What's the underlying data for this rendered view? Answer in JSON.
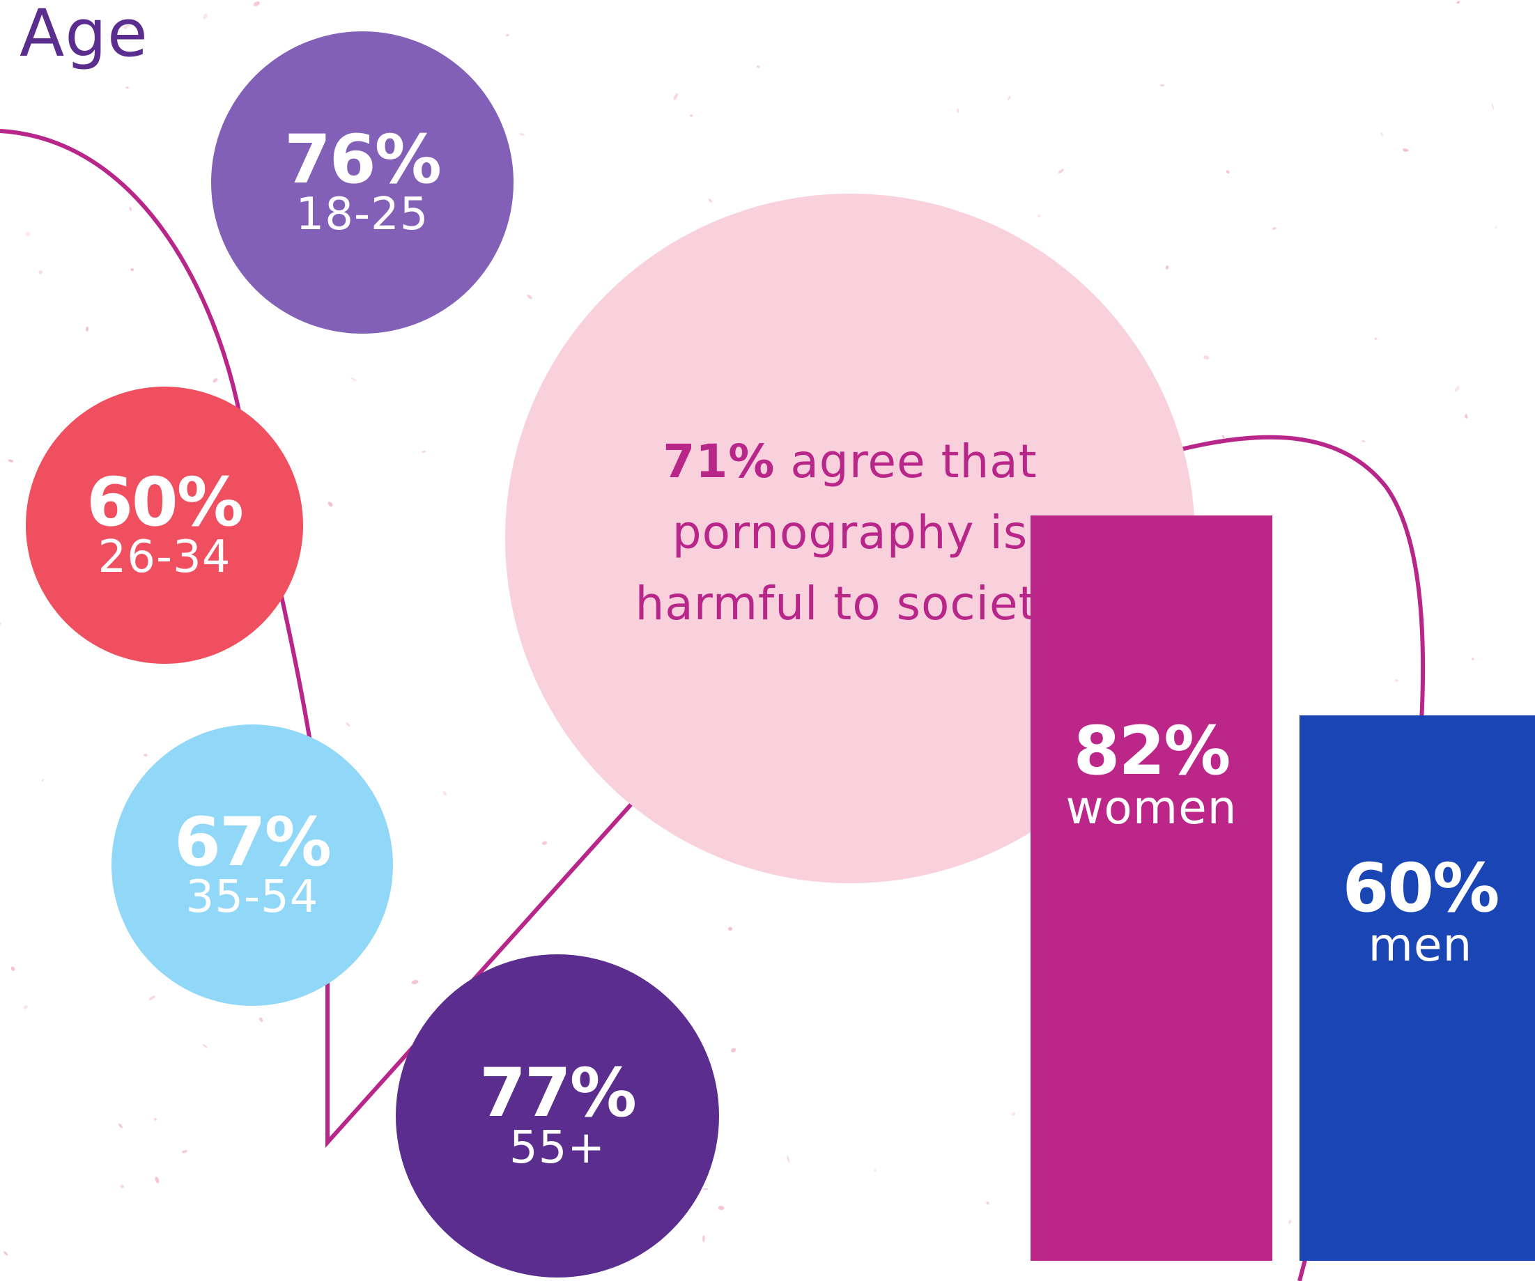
{
  "title": "Age",
  "headline": {
    "percent": "71%",
    "text": "agree that pornography is harmful to society"
  },
  "chart_data": [
    {
      "type": "bubble",
      "title": "Age",
      "categories": [
        "18-25",
        "26-34",
        "35-54",
        "55+"
      ],
      "values": [
        76,
        60,
        67,
        77
      ],
      "labels": [
        "76%",
        "60%",
        "67%",
        "77%"
      ],
      "colors": [
        "#8260b7",
        "#f04f5f",
        "#90d7f8",
        "#5b2d8e"
      ]
    },
    {
      "type": "bar",
      "categories": [
        "women",
        "men"
      ],
      "values": [
        82,
        60
      ],
      "labels": [
        "82%",
        "60%"
      ],
      "colors": [
        "#bb2688",
        "#1a45b4"
      ]
    }
  ],
  "colors": {
    "line": "#b8268a",
    "big_circle": "#f9d1dc",
    "headline_text": "#b8268a",
    "title_text": "#5b2d8e"
  }
}
